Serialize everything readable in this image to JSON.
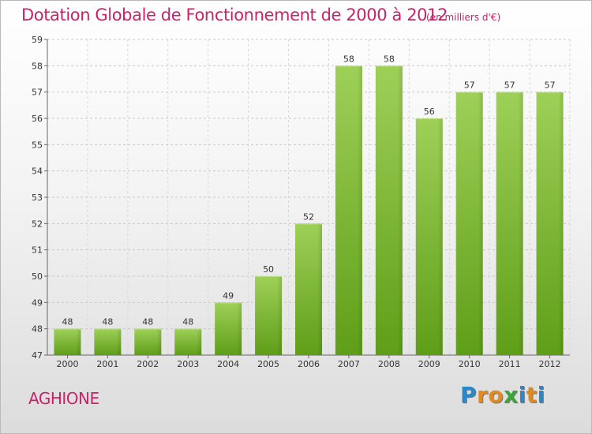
{
  "header": {
    "title": "Dotation Globale de Fonctionnement de 2000 à 2012",
    "unit": "(en milliers d'€)"
  },
  "commune": "AGHIONE",
  "logo": {
    "letters": [
      "P",
      "r",
      "o",
      "x",
      "i",
      "t",
      "i"
    ],
    "colors": [
      "#2a88c9",
      "#e08a1f",
      "#e08a1f",
      "#3aa63a",
      "#2a88c9",
      "#e08a1f",
      "#2a88c9"
    ]
  },
  "chart_data": {
    "type": "bar",
    "categories": [
      "2000",
      "2001",
      "2002",
      "2003",
      "2004",
      "2005",
      "2006",
      "2007",
      "2008",
      "2009",
      "2010",
      "2011",
      "2012"
    ],
    "values": [
      48,
      48,
      48,
      48,
      49,
      50,
      52,
      58,
      58,
      56,
      57,
      57,
      57
    ],
    "title": "Dotation Globale de Fonctionnement de 2000 à 2012",
    "subtitle": "(en milliers d'€)",
    "xlabel": "",
    "ylabel": "",
    "ylim": [
      47,
      59
    ],
    "yticks": [
      47,
      48,
      49,
      50,
      51,
      52,
      53,
      54,
      55,
      56,
      57,
      58,
      59
    ],
    "grid": "horizontal dashed",
    "bar_color": "#7fbf3a",
    "legend": "none"
  }
}
